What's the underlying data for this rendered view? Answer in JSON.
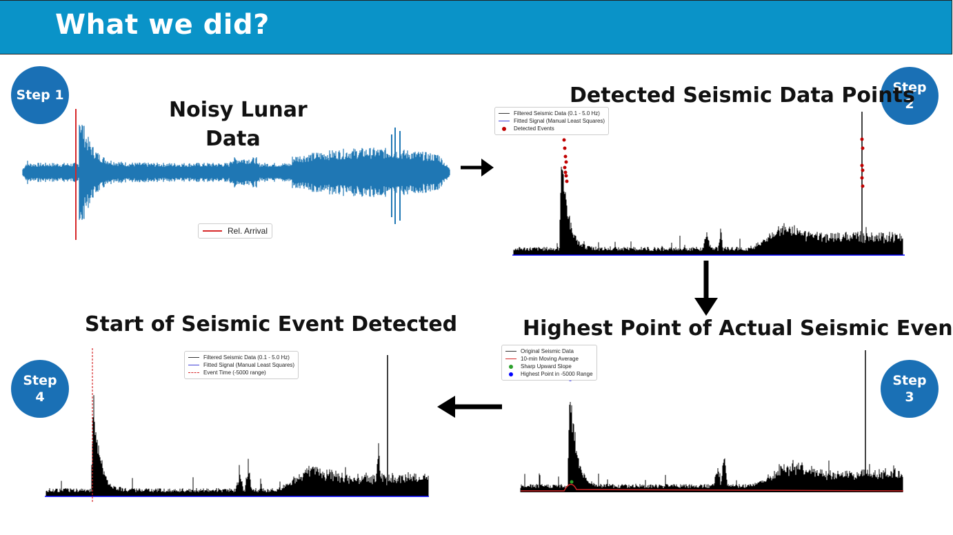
{
  "header": {
    "title": "What we did?",
    "color": "#0a93c8"
  },
  "steps": {
    "step1": {
      "badge": "Step 1",
      "caption_line1": "Noisy Lunar",
      "caption_line2": "Data",
      "legend": [
        "Rel. Arrival"
      ]
    },
    "step2": {
      "badge_line1": "Step",
      "badge_line2": "2",
      "caption": "Detected Seismic Data Points",
      "legend": [
        "Filtered Seismic Data (0.1 - 5.0 Hz)",
        "Fitted Signal (Manual Least Squares)",
        "Detected Events"
      ]
    },
    "step3": {
      "badge_line1": "Step",
      "badge_line2": "3",
      "caption": "Highest Point of Actual Seismic Event",
      "legend": [
        "Original Seismic Data",
        "10-min Moving Average",
        "Sharp Upward Slope",
        "Highest Point in -5000 Range"
      ]
    },
    "step4": {
      "badge_line1": "Step",
      "badge_line2": "4",
      "caption": "Start of Seismic Event Detected",
      "legend": [
        "Filtered Seismic Data (0.1 - 5.0 Hz)",
        "Fitted Signal (Manual Least Squares)",
        "Event Time (-5000 range)"
      ]
    }
  },
  "colors": {
    "badge": "#1a70b5",
    "waveform": "#1f77b4",
    "arrival": "#d62728",
    "signal": "#000000",
    "fit": "#0000ff",
    "moving_average": "#d62728",
    "slope_point": "#2ca02c",
    "peak_point": "#0000ff",
    "detected_event": "#c00000"
  }
}
